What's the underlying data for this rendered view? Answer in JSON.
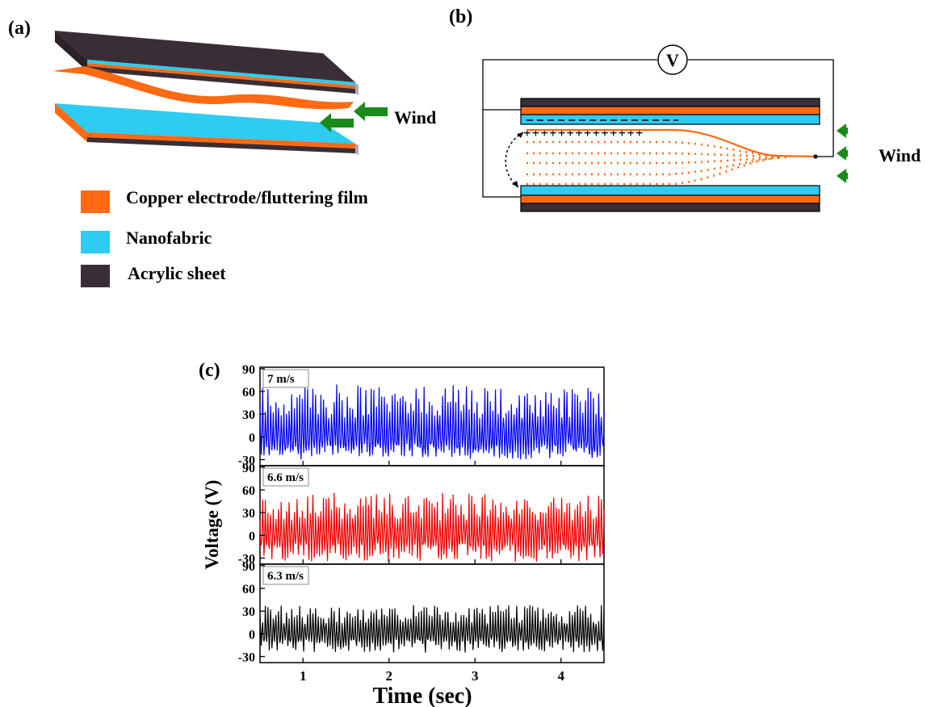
{
  "figure": {
    "panel_a": {
      "label": "(a)",
      "wind_label": "Wind",
      "legend": [
        {
          "label": "Copper electrode/fluttering film",
          "color": "#ff6a13"
        },
        {
          "label": "Nanofabric",
          "color": "#2ecbf2"
        },
        {
          "label": "Acrylic sheet",
          "color": "#3a2e36"
        }
      ],
      "arrow_color": "#1a8a1a"
    },
    "panel_b": {
      "label": "(b)",
      "wind_label": "Wind",
      "voltmeter_label": "V",
      "plus_charges": "++++++++++++++",
      "colors": {
        "copper": "#ff6a13",
        "nanofabric": "#2ecbf2",
        "acrylic": "#3a2e36",
        "arrow": "#1a8a1a"
      }
    },
    "panel_c": {
      "label": "(c)"
    }
  },
  "chart_data": {
    "type": "line",
    "xlabel": "Time (sec)",
    "ylabel": "Voltage (V)",
    "xlim": [
      0.5,
      4.5
    ],
    "xticks": [
      1,
      2,
      3,
      4
    ],
    "yticks": [
      -30,
      0,
      30,
      60,
      90
    ],
    "ylim": [
      -38,
      92
    ],
    "series": [
      {
        "name": "7 m/s",
        "color": "#0000ee",
        "amplitude": {
          "max": 70,
          "min": -30
        }
      },
      {
        "name": "6.6 m/s",
        "color": "#ee0000",
        "amplitude": {
          "max": 57,
          "min": -35
        }
      },
      {
        "name": "6.3 m/s",
        "color": "#000000",
        "amplitude": {
          "max": 38,
          "min": -25
        }
      }
    ]
  }
}
